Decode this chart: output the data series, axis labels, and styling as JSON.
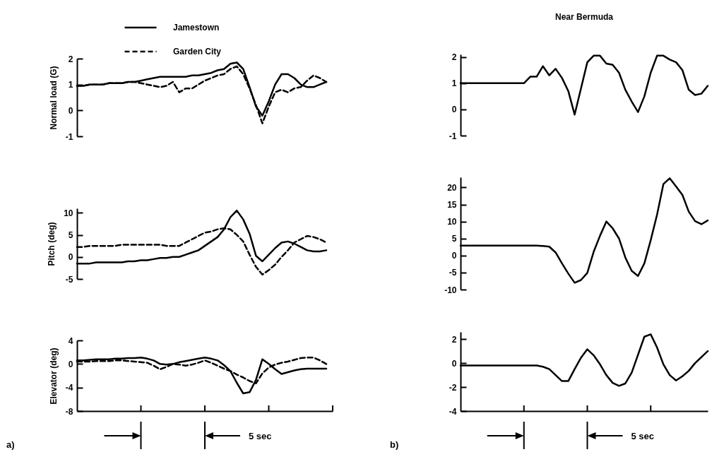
{
  "chart_data": [
    {
      "type": "line",
      "categories": [
        null,
        null,
        null,
        null,
        null,
        null,
        null,
        null,
        null,
        null,
        null,
        null,
        null,
        null,
        null,
        null,
        null,
        null,
        null,
        null,
        null,
        null,
        null,
        null,
        null,
        null,
        null,
        null,
        null,
        null,
        null,
        null,
        null,
        null,
        null,
        null,
        null,
        null,
        null,
        null,
        null
      ],
      "ylim": [
        -1,
        2
      ],
      "yticks": [
        -1,
        0,
        1,
        2
      ],
      "ylabel": "Normal load (G)",
      "tick_labels": "y",
      "legend": "top",
      "series": [
        {
          "name": "Jamestown",
          "color": "#000000",
          "line_style": "solid",
          "values": [
            0.95,
            0.95,
            1,
            1,
            1,
            1.05,
            1.05,
            1.05,
            1.1,
            1.1,
            1.15,
            1.2,
            1.25,
            1.3,
            1.3,
            1.3,
            1.3,
            1.3,
            1.35,
            1.35,
            1.4,
            1.45,
            1.55,
            1.6,
            1.8,
            1.85,
            1.6,
            0.9,
            0.15,
            -0.2,
            0.35,
            1,
            1.4,
            1.4,
            1.25,
            1,
            0.9,
            0.9,
            1,
            1.1,
            null
          ]
        },
        {
          "name": "Garden City",
          "color": "#000000",
          "line_style": "dashed",
          "values": [
            0.95,
            0.95,
            1,
            1,
            1,
            1.05,
            1.05,
            1.05,
            1.1,
            1.1,
            1.05,
            1,
            0.95,
            0.9,
            0.95,
            1.1,
            0.7,
            0.85,
            0.85,
            1,
            1.15,
            1.25,
            1.35,
            1.4,
            1.6,
            1.7,
            1.4,
            0.85,
            0.2,
            -0.5,
            0.15,
            0.7,
            0.8,
            0.7,
            0.85,
            0.9,
            1.15,
            1.35,
            1.25,
            1.1,
            null
          ]
        }
      ]
    },
    {
      "type": "line",
      "title": "Near Bermuda",
      "categories": [
        null,
        null,
        null,
        null,
        null,
        null,
        null,
        null,
        null,
        null,
        null,
        null,
        null,
        null,
        null,
        null,
        null,
        null,
        null,
        null,
        null,
        null,
        null,
        null,
        null,
        null,
        null,
        null,
        null,
        null,
        null,
        null,
        null,
        null,
        null,
        null,
        null,
        null,
        null,
        null
      ],
      "ylim": [
        -1,
        2.1
      ],
      "yticks": [
        -1,
        0,
        1,
        2
      ],
      "tick_labels": "y",
      "series": [
        {
          "color": "#000000",
          "line_style": "solid",
          "values": [
            1,
            1,
            1,
            1,
            1,
            1,
            1,
            1,
            1,
            1,
            1,
            1.25,
            1.25,
            1.65,
            1.3,
            1.55,
            1.2,
            0.7,
            -0.2,
            0.8,
            1.8,
            2.05,
            2.05,
            1.75,
            1.7,
            1.4,
            0.75,
            0.3,
            -0.1,
            0.5,
            1.4,
            2.05,
            2.05,
            1.9,
            1.8,
            1.5,
            0.75,
            0.55,
            0.6,
            0.9
          ]
        }
      ]
    },
    {
      "type": "line",
      "categories": [
        null,
        null,
        null,
        null,
        null,
        null,
        null,
        null,
        null,
        null,
        null,
        null,
        null,
        null,
        null,
        null,
        null,
        null,
        null,
        null,
        null,
        null,
        null,
        null,
        null,
        null,
        null,
        null,
        null,
        null,
        null,
        null,
        null,
        null,
        null,
        null,
        null,
        null,
        null,
        null,
        null
      ],
      "ylim": [
        -5,
        11
      ],
      "yticks": [
        -5,
        0,
        5,
        10
      ],
      "ylabel": "Pitch (deg)",
      "tick_labels": "y",
      "series": [
        {
          "color": "#000000",
          "line_style": "solid",
          "values": [
            -1.5,
            -1.5,
            -1.5,
            -1.25,
            -1.25,
            -1.25,
            -1.25,
            -1.25,
            -1,
            -1,
            -0.75,
            -0.75,
            -0.5,
            -0.25,
            -0.25,
            0,
            0,
            0.5,
            1,
            1.5,
            2.5,
            3.5,
            4.5,
            6.25,
            9,
            10.5,
            8.5,
            5.25,
            0.25,
            -1,
            0.5,
            2,
            3.25,
            3.5,
            3,
            2.25,
            1.5,
            1.25,
            1.25,
            1.5,
            null
          ]
        },
        {
          "color": "#000000",
          "line_style": "dashed",
          "values": [
            2.25,
            2.25,
            2.5,
            2.5,
            2.5,
            2.5,
            2.5,
            2.75,
            2.75,
            2.75,
            2.75,
            2.75,
            2.75,
            2.75,
            2.5,
            2.5,
            2.5,
            3.25,
            4,
            4.75,
            5.5,
            5.75,
            6.25,
            6.5,
            6.25,
            5,
            3.5,
            0.5,
            -2.25,
            -4,
            -3,
            -1.75,
            0,
            1.5,
            3.25,
            4,
            4.75,
            4.5,
            4,
            3.25,
            null
          ]
        }
      ]
    },
    {
      "type": "line",
      "categories": [
        null,
        null,
        null,
        null,
        null,
        null,
        null,
        null,
        null,
        null,
        null,
        null,
        null,
        null,
        null,
        null,
        null,
        null,
        null,
        null,
        null,
        null,
        null,
        null,
        null,
        null,
        null,
        null,
        null,
        null,
        null,
        null,
        null,
        null,
        null,
        null,
        null,
        null,
        null,
        null
      ],
      "ylim": [
        -10,
        23
      ],
      "yticks": [
        -10,
        -5,
        0,
        5,
        10,
        15,
        20
      ],
      "tick_labels": "y",
      "series": [
        {
          "color": "#000000",
          "line_style": "solid",
          "values": [
            2.9,
            2.9,
            2.9,
            2.9,
            2.9,
            2.9,
            2.9,
            2.9,
            2.9,
            2.9,
            2.9,
            2.9,
            2.9,
            2.8,
            2.6,
            0.9,
            -2.3,
            -5.3,
            -8,
            -7.2,
            -5.1,
            1.1,
            5.8,
            10,
            8,
            5,
            -0.6,
            -4.5,
            -6,
            -2.3,
            4.5,
            12,
            21,
            22.7,
            20.3,
            17.8,
            12.9,
            10.1,
            9.2,
            10.3
          ]
        }
      ]
    },
    {
      "type": "line",
      "categories": [
        null,
        null,
        null,
        null,
        null,
        null,
        null,
        null,
        null,
        null,
        null,
        null,
        null,
        null,
        null,
        null,
        null,
        null,
        null,
        null,
        null,
        null,
        null,
        null,
        null,
        null,
        null,
        null,
        null,
        null,
        null,
        null,
        null,
        null,
        null,
        null,
        null,
        null,
        null,
        null,
        null
      ],
      "ylim": [
        -8,
        4
      ],
      "yticks": [
        -8,
        -4,
        0,
        4
      ],
      "ylabel": "Elevator (deg)",
      "tick_labels": "y",
      "annotations": [
        "a)",
        "5 sec"
      ],
      "series": [
        {
          "color": "#000000",
          "line_style": "solid",
          "values": [
            0.6,
            0.6,
            0.7,
            0.8,
            0.8,
            0.8,
            0.9,
            0.9,
            1,
            1,
            1.1,
            0.9,
            0.6,
            0,
            -0.1,
            0,
            0.3,
            0.5,
            0.7,
            0.9,
            1.1,
            0.9,
            0.6,
            -0.2,
            -1.2,
            -3.2,
            -5,
            -4.8,
            -2.7,
            0.8,
            0,
            -0.9,
            -1.7,
            -1.4,
            -1.1,
            -0.9,
            -0.8,
            -0.8,
            -0.8,
            -0.8,
            null
          ]
        },
        {
          "color": "#000000",
          "line_style": "dashed",
          "values": [
            0.4,
            0.4,
            0.4,
            0.5,
            0.5,
            0.5,
            0.6,
            0.6,
            0.5,
            0.4,
            0.3,
            0.2,
            -0.3,
            -0.9,
            -0.5,
            0,
            -0.1,
            -0.3,
            -0.1,
            0.2,
            0.6,
            0.2,
            -0.3,
            -0.8,
            -1.2,
            -1.8,
            -2.3,
            -2.9,
            -3.3,
            -1.6,
            -0.6,
            -0.1,
            0.2,
            0.4,
            0.7,
            1,
            1.1,
            1.1,
            0.6,
            0,
            null
          ]
        }
      ]
    },
    {
      "type": "line",
      "categories": [
        null,
        null,
        null,
        null,
        null,
        null,
        null,
        null,
        null,
        null,
        null,
        null,
        null,
        null,
        null,
        null,
        null,
        null,
        null,
        null,
        null,
        null,
        null,
        null,
        null,
        null,
        null,
        null,
        null,
        null,
        null,
        null,
        null,
        null,
        null,
        null,
        null,
        null,
        null,
        null
      ],
      "ylim": [
        -4,
        2.6
      ],
      "yticks": [
        -4,
        -2,
        0,
        2
      ],
      "tick_labels": "y",
      "annotations": [
        "b)",
        "5 sec"
      ],
      "series": [
        {
          "color": "#000000",
          "line_style": "solid",
          "values": [
            -0.2,
            -0.2,
            -0.2,
            -0.2,
            -0.2,
            -0.2,
            -0.2,
            -0.2,
            -0.2,
            -0.2,
            -0.2,
            -0.2,
            -0.2,
            -0.3,
            -0.5,
            -1,
            -1.5,
            -1.5,
            -0.5,
            0.45,
            1.15,
            0.65,
            -0.1,
            -1,
            -1.65,
            -1.9,
            -1.7,
            -0.8,
            0.7,
            2.2,
            2.4,
            1.3,
            -0.1,
            -1,
            -1.45,
            -1.1,
            -0.65,
            0,
            0.5,
            1
          ]
        }
      ]
    }
  ]
}
